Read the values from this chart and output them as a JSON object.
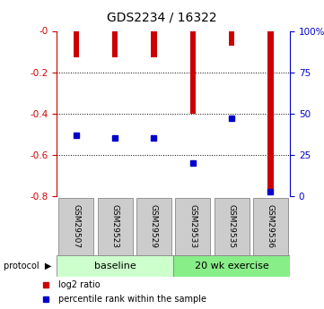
{
  "title": "GDS2234 / 16322",
  "samples": [
    "GSM29507",
    "GSM29523",
    "GSM29529",
    "GSM29533",
    "GSM29535",
    "GSM29536"
  ],
  "log2_values": [
    -0.13,
    -0.13,
    -0.13,
    -0.4,
    -0.07,
    -0.79
  ],
  "percentile_values": [
    37,
    35,
    35,
    20,
    47,
    3
  ],
  "ylim": [
    -0.8,
    0.0
  ],
  "yticks_left": [
    0.0,
    -0.2,
    -0.4,
    -0.6,
    -0.8
  ],
  "ytick_labels_left": [
    "-0",
    "-0.2",
    "-0.4",
    "-0.6",
    "-0.8"
  ],
  "yticks_right_pct": [
    100,
    75,
    50,
    25,
    0
  ],
  "ytick_labels_right": [
    "100%",
    "75",
    "50",
    "25",
    "0"
  ],
  "bar_color": "#cc0000",
  "percentile_color": "#0000cc",
  "bar_width": 0.15,
  "axis_left_color": "#cc0000",
  "axis_right_color": "#0000cc",
  "sample_bg_color": "#cccccc",
  "group1_color": "#ccffcc",
  "group2_color": "#88ee88",
  "group1_label": "baseline",
  "group2_label": "20 wk exercise",
  "legend_items": [
    {
      "color": "#cc0000",
      "label": "log2 ratio"
    },
    {
      "color": "#0000cc",
      "label": "percentile rank within the sample"
    }
  ],
  "protocol_label": "protocol"
}
